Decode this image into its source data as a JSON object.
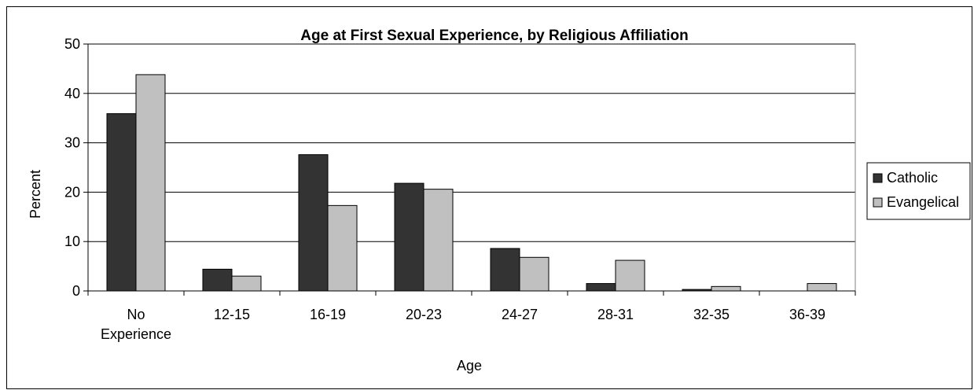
{
  "chart_data": {
    "type": "bar",
    "title": "Age at First Sexual Experience, by Religious Affiliation",
    "xlabel": "Age",
    "ylabel": "Percent",
    "categories": [
      [
        "No",
        "Experience"
      ],
      [
        "12-15"
      ],
      [
        "16-19"
      ],
      [
        "20-23"
      ],
      [
        "24-27"
      ],
      [
        "28-31"
      ],
      [
        "32-35"
      ],
      [
        "36-39"
      ]
    ],
    "series": [
      {
        "name": "Catholic",
        "color": "#333333",
        "values": [
          35.9,
          4.4,
          27.6,
          21.8,
          8.6,
          1.5,
          0.3,
          0
        ]
      },
      {
        "name": "Evangelical",
        "color": "#c0c0c0",
        "values": [
          43.8,
          3.0,
          17.3,
          20.6,
          6.8,
          6.2,
          0.9,
          1.5
        ]
      }
    ],
    "ylim": [
      0,
      50
    ],
    "yticks": [
      0,
      10,
      20,
      30,
      40,
      50
    ],
    "grid": true,
    "legend_position": "right"
  }
}
